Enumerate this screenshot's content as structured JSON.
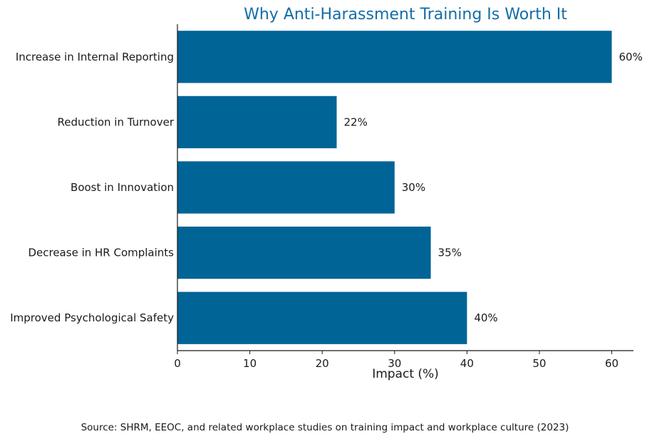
{
  "colors": {
    "bar": "#006496",
    "title": "#136da6",
    "axis": "#1a1a1a",
    "text": "#1a1a1a"
  },
  "chart_data": {
    "type": "bar",
    "orientation": "horizontal",
    "title": "Why Anti-Harassment Training Is Worth It",
    "xlabel": "Impact (%)",
    "ylabel": "",
    "xlim": [
      0,
      63
    ],
    "grid": false,
    "categories": [
      "Increase in Internal Reporting",
      "Reduction in Turnover",
      "Boost in Innovation",
      "Decrease in HR Complaints",
      "Improved Psychological Safety"
    ],
    "values": [
      60,
      22,
      30,
      35,
      40
    ],
    "value_labels": [
      "60%",
      "22%",
      "30%",
      "35%",
      "40%"
    ],
    "x_ticks": [
      0,
      10,
      20,
      30,
      40,
      50,
      60
    ],
    "x_tick_labels": [
      "0",
      "10",
      "20",
      "30",
      "40",
      "50",
      "60"
    ]
  },
  "footer": {
    "source": "Source: SHRM, EEOC, and related workplace studies on training impact and workplace culture (2023)"
  }
}
